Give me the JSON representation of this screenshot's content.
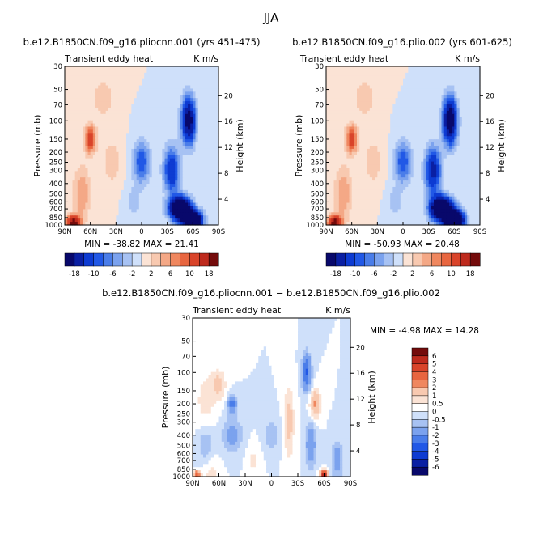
{
  "figure": {
    "title": "JJA"
  },
  "colors": {
    "blues": [
      "#08086b",
      "#0a1fa3",
      "#0d3bd2",
      "#2158e6",
      "#4a7de9",
      "#7ba2ee",
      "#a7c2f3",
      "#cfe0fa",
      "#e4eefc"
    ],
    "reds": [
      "#fbe3d5",
      "#f8c9b0",
      "#f4a886",
      "#ef875f",
      "#e86640",
      "#d9442a",
      "#be2a1d",
      "#9c1414",
      "#740b0b"
    ]
  },
  "chart_data": [
    {
      "type": "heatmap",
      "title": "b.e12.B1850CN.f09_g16.pliocnn.001 (yrs 451-475)",
      "left_label": "Transient eddy heat",
      "right_label": "K m/s",
      "xlabel": "",
      "ylabel": "Pressure (mb)",
      "ylabel_right": "Height (km)",
      "x_ticks": [
        "90N",
        "60N",
        "30N",
        "0",
        "30S",
        "60S",
        "90S"
      ],
      "y_ticks": [
        "30",
        "50",
        "70",
        "100",
        "150",
        "200",
        "250",
        "300",
        "400",
        "500",
        "600",
        "700",
        "850",
        "1000"
      ],
      "height_ticks": [
        "20",
        "16",
        "12",
        "8",
        "4"
      ],
      "min_max_text": "MIN = -38.82   MAX = 21.41",
      "colorbar_labels": [
        "-18",
        "-10",
        "-6",
        "-2",
        "2",
        "6",
        "10",
        "18"
      ],
      "field": [
        {
          "lat": 0,
          "p": 250,
          "v": -10,
          "w": 10,
          "s": 0.45
        },
        {
          "lat": -45,
          "p": 700,
          "v": -34,
          "w": 12,
          "s": 0.25
        },
        {
          "lat": -60,
          "p": 900,
          "v": -36,
          "w": 10,
          "s": 0.2
        },
        {
          "lat": -55,
          "p": 100,
          "v": -22,
          "w": 8,
          "s": 0.5
        },
        {
          "lat": -35,
          "p": 300,
          "v": -14,
          "w": 9,
          "s": 0.5
        },
        {
          "lat": 10,
          "p": 600,
          "v": -3,
          "w": 10,
          "s": 0.35
        },
        {
          "lat": 60,
          "p": 150,
          "v": 12,
          "w": 7,
          "s": 0.3
        },
        {
          "lat": 80,
          "p": 950,
          "v": 21,
          "w": 8,
          "s": 0.15
        },
        {
          "lat": 70,
          "p": 500,
          "v": 6,
          "w": 10,
          "s": 0.6
        },
        {
          "lat": 45,
          "p": 60,
          "v": 4,
          "w": 12,
          "s": 0.4
        },
        {
          "lat": 35,
          "p": 250,
          "v": 3,
          "w": 12,
          "s": 0.6
        }
      ]
    },
    {
      "type": "heatmap",
      "title": "b.e12.B1850CN.f09_g16.plio.002 (yrs 601-625)",
      "left_label": "Transient eddy heat",
      "right_label": "K m/s",
      "xlabel": "",
      "ylabel": "Pressure (mb)",
      "ylabel_right": "Height (km)",
      "x_ticks": [
        "90N",
        "60N",
        "30N",
        "0",
        "30S",
        "60S",
        "90S"
      ],
      "y_ticks": [
        "30",
        "50",
        "70",
        "100",
        "150",
        "200",
        "250",
        "300",
        "400",
        "500",
        "600",
        "700",
        "850",
        "1000"
      ],
      "height_ticks": [
        "20",
        "16",
        "12",
        "8",
        "4"
      ],
      "min_max_text": "MIN = -50.93   MAX = 20.48",
      "colorbar_labels": [
        "-18",
        "-10",
        "-6",
        "-2",
        "2",
        "6",
        "10",
        "18"
      ],
      "field": [
        {
          "lat": 0,
          "p": 250,
          "v": -10,
          "w": 10,
          "s": 0.45
        },
        {
          "lat": -45,
          "p": 700,
          "v": -38,
          "w": 12,
          "s": 0.25
        },
        {
          "lat": -60,
          "p": 900,
          "v": -45,
          "w": 10,
          "s": 0.2
        },
        {
          "lat": -55,
          "p": 100,
          "v": -24,
          "w": 8,
          "s": 0.5
        },
        {
          "lat": -35,
          "p": 300,
          "v": -16,
          "w": 9,
          "s": 0.5
        },
        {
          "lat": 10,
          "p": 600,
          "v": -3,
          "w": 10,
          "s": 0.35
        },
        {
          "lat": 60,
          "p": 150,
          "v": 12,
          "w": 7,
          "s": 0.3
        },
        {
          "lat": 80,
          "p": 950,
          "v": 20,
          "w": 8,
          "s": 0.15
        },
        {
          "lat": 70,
          "p": 500,
          "v": 6,
          "w": 10,
          "s": 0.6
        },
        {
          "lat": 45,
          "p": 60,
          "v": 4,
          "w": 12,
          "s": 0.4
        },
        {
          "lat": 35,
          "p": 250,
          "v": 3,
          "w": 12,
          "s": 0.6
        }
      ]
    },
    {
      "type": "heatmap",
      "title": "b.e12.B1850CN.f09_g16.pliocnn.001 − b.e12.B1850CN.f09_g16.plio.002",
      "left_label": "Transient eddy heat",
      "right_label": "K m/s",
      "xlabel": "",
      "ylabel": "Pressure (mb)",
      "ylabel_right": "Height (km)",
      "x_ticks": [
        "90N",
        "60N",
        "30N",
        "0",
        "30S",
        "60S",
        "90S"
      ],
      "y_ticks": [
        "30",
        "50",
        "70",
        "100",
        "150",
        "200",
        "250",
        "300",
        "400",
        "500",
        "600",
        "700",
        "850",
        "1000"
      ],
      "height_ticks": [
        "20",
        "16",
        "12",
        "8",
        "4"
      ],
      "min_max_text": "MIN =    -4.98   MAX =   14.28",
      "colorbar_labels": [
        "6",
        "5",
        "4",
        "3",
        "2",
        "1",
        "0.5",
        "0",
        "-0.5",
        "-1",
        "-2",
        "-3",
        "-4",
        "-5",
        "-6"
      ],
      "field": [
        {
          "lat": 75,
          "p": 200,
          "v": 0.7,
          "w": 14,
          "s": 0.8
        },
        {
          "lat": 70,
          "p": 900,
          "v": 0.8,
          "w": 10,
          "s": 0.4
        },
        {
          "lat": 60,
          "p": 130,
          "v": 1.2,
          "w": 8,
          "s": 0.3
        },
        {
          "lat": 20,
          "p": 700,
          "v": 0.6,
          "w": 8,
          "s": 0.4
        },
        {
          "lat": 45,
          "p": 400,
          "v": -1.3,
          "w": 12,
          "s": 0.4
        },
        {
          "lat": 45,
          "p": 200,
          "v": -2.4,
          "w": 5,
          "s": 0.2
        },
        {
          "lat": 75,
          "p": 500,
          "v": -1.1,
          "w": 10,
          "s": 0.5
        },
        {
          "lat": 0,
          "p": 400,
          "v": -0.8,
          "w": 10,
          "s": 0.4
        },
        {
          "lat": -20,
          "p": 300,
          "v": 1.3,
          "w": 6,
          "s": 0.8
        },
        {
          "lat": -40,
          "p": 100,
          "v": -3.2,
          "w": 5,
          "s": 0.4
        },
        {
          "lat": -50,
          "p": 200,
          "v": 2.2,
          "w": 6,
          "s": 0.3
        },
        {
          "lat": -45,
          "p": 500,
          "v": -1.8,
          "w": 6,
          "s": 0.5
        },
        {
          "lat": -60,
          "p": 960,
          "v": 6.0,
          "w": 4,
          "s": 0.1
        },
        {
          "lat": -75,
          "p": 700,
          "v": -1.5,
          "w": 7,
          "s": 0.4
        },
        {
          "lat": 85,
          "p": 960,
          "v": 3.2,
          "w": 4,
          "s": 0.1
        }
      ]
    }
  ]
}
